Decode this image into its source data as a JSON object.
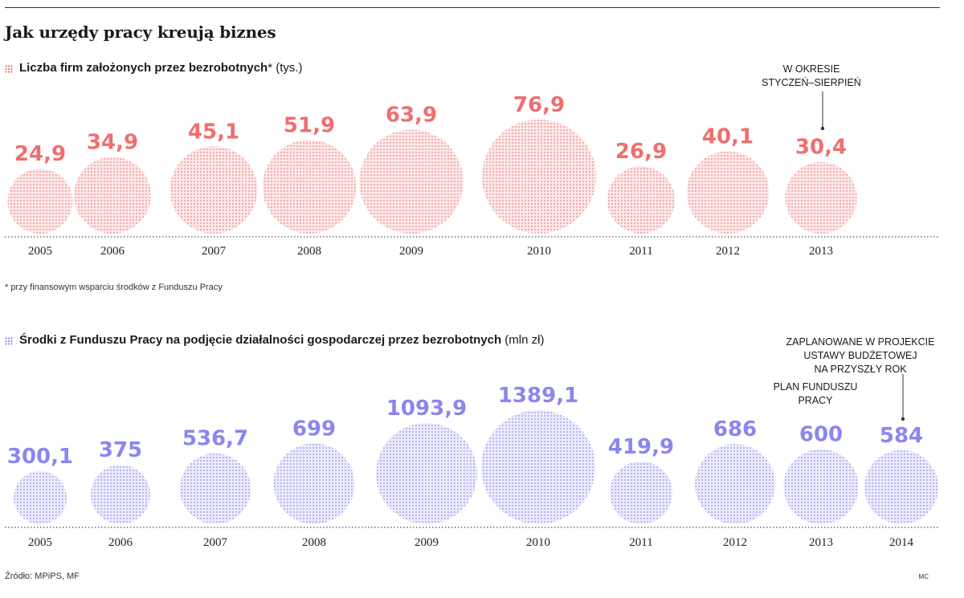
{
  "title": "Jak urzędy pracy kreują biznes",
  "footnote": "* przy finansowym wsparciu środków z Funduszu Pracy",
  "source": "Źródło: MPiPS, MF",
  "credit": "MC",
  "chart_data": [
    {
      "type": "bubble",
      "title_bold": "Liczba firm założonych przez bezrobotnych",
      "title_suffix": "* (tys.)",
      "color": "#f06e6e",
      "fill": "#f6b5b5",
      "categories": [
        "2005",
        "2006",
        "2007",
        "2008",
        "2009",
        "2010",
        "2011",
        "2012",
        "2013"
      ],
      "values": [
        24.9,
        34.9,
        45.1,
        51.9,
        63.9,
        76.9,
        26.9,
        40.1,
        30.4
      ],
      "labels": [
        "24,9",
        "34,9",
        "45,1",
        "51,9",
        "63,9",
        "76,9",
        "26,9",
        "40,1",
        "30,4"
      ],
      "annotations": [
        {
          "text": "W OKRESIE\nSTYCZEŃ–SIERPIEŃ",
          "category": "2013"
        }
      ]
    },
    {
      "type": "bubble",
      "title_bold": "Środki z Funduszu Pracy na podjęcie działalności gospodarczej przez bezrobotnych",
      "title_suffix": " (mln zł)",
      "color": "#8a86f0",
      "fill": "#c3c1f5",
      "categories": [
        "2005",
        "2006",
        "2007",
        "2008",
        "2009",
        "2010",
        "2011",
        "2012",
        "2013",
        "2014"
      ],
      "values": [
        300.1,
        375,
        536.7,
        699,
        1093.9,
        1389.1,
        419.9,
        686,
        600,
        584
      ],
      "labels": [
        "300,1",
        "375",
        "536,7",
        "699",
        "1093,9",
        "1389,1",
        "419,9",
        "686",
        "600",
        "584"
      ],
      "annotations": [
        {
          "text": "PLAN FUNDUSZU\nPRACY",
          "category": "2013"
        },
        {
          "text": "ZAPLANOWANE W PROJEKCIE\nUSTAWY BUDŻETOWEJ\nNA PRZYSZŁY ROK",
          "category": "2014"
        }
      ]
    }
  ]
}
